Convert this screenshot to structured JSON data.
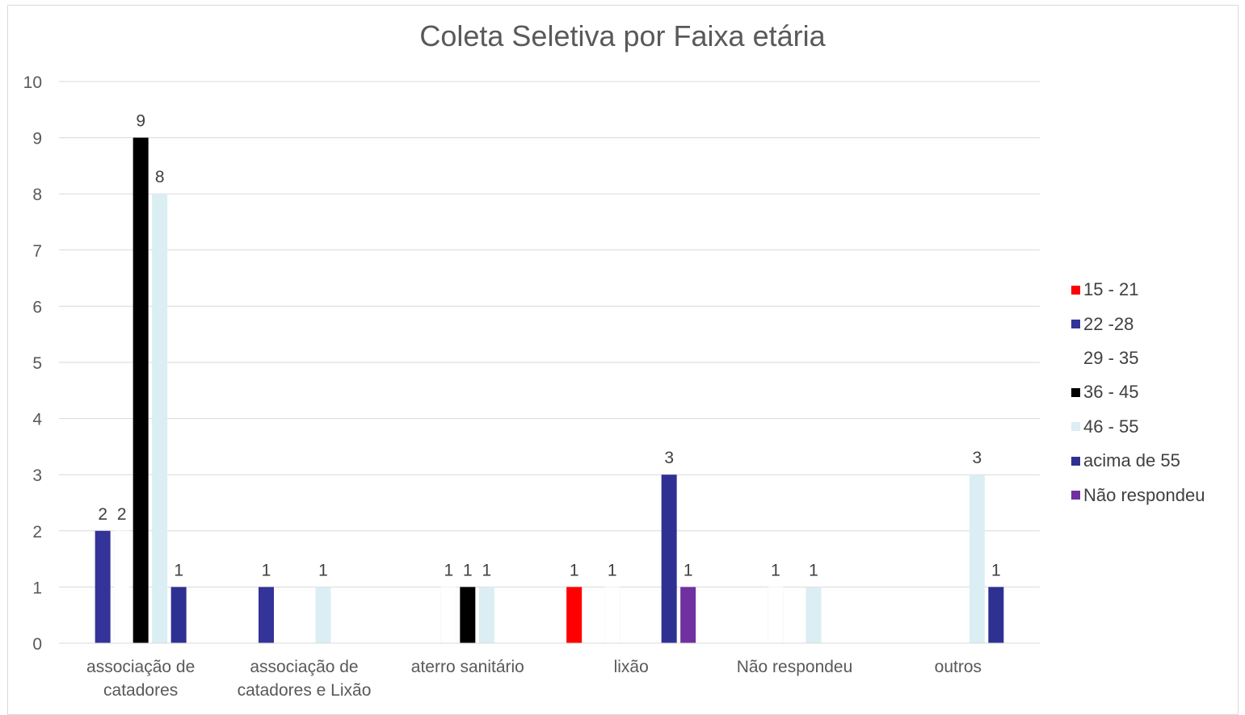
{
  "chart_data": {
    "type": "bar",
    "title": "Coleta Seletiva por Faixa etária",
    "xlabel": "",
    "ylabel": "",
    "ylim": [
      0,
      10
    ],
    "yticks": [
      "0",
      "1",
      "2",
      "3",
      "4",
      "5",
      "6",
      "7",
      "8",
      "9",
      "10"
    ],
    "grid": true,
    "legend_position": "right",
    "categories": [
      [
        "associação de",
        "catadores"
      ],
      [
        "associação de",
        "catadores e Lixão"
      ],
      [
        "aterro sanitário"
      ],
      [
        "lixão"
      ],
      [
        "Não respondeu"
      ],
      [
        "outros"
      ]
    ],
    "series": [
      {
        "name": "15 - 21",
        "color": "#ff0000",
        "values": [
          null,
          null,
          null,
          1,
          null,
          null
        ]
      },
      {
        "name": "22 -28",
        "color": "#333399",
        "values": [
          2,
          1,
          null,
          null,
          null,
          null
        ]
      },
      {
        "name": "29 - 35",
        "color": "#ffffff",
        "values": [
          2,
          null,
          1,
          1,
          1,
          null
        ]
      },
      {
        "name": "36 - 45",
        "color": "#000000",
        "values": [
          9,
          null,
          1,
          null,
          null,
          null
        ]
      },
      {
        "name": "46 - 55",
        "color": "#dbeef3",
        "values": [
          8,
          1,
          1,
          null,
          1,
          3
        ]
      },
      {
        "name": "acima de 55",
        "color": "#2e3192",
        "values": [
          1,
          null,
          null,
          3,
          null,
          1
        ]
      },
      {
        "name": "Não respondeu",
        "color": "#7030a0",
        "values": [
          null,
          null,
          null,
          1,
          null,
          null
        ]
      }
    ]
  }
}
